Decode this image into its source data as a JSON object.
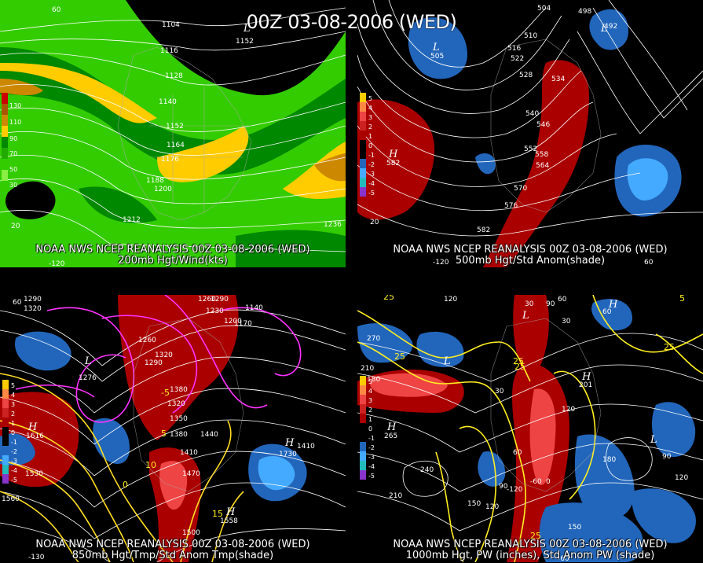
{
  "title": "00Z 03-08-2006 (WED)",
  "panels": [
    {
      "id": "p1",
      "caption_line1": "NOAA NWS NCEP REANALYSIS 00Z 03-08-2006 (WED)",
      "caption_line2": "200mb Hgt/Wind(kts)",
      "colorbar": [
        "130",
        "110",
        "90",
        "70",
        "50",
        "30"
      ],
      "colors": {
        "fill_low": "#33cc00",
        "fill_mid": "#008800",
        "fill_jet": "#ffcc00",
        "fill_core": "#cc8800",
        "fill_dark": "#000000"
      },
      "contour_labels": [
        "1104",
        "1116",
        "1128",
        "1140",
        "1152",
        "1164",
        "1176",
        "1188",
        "1200",
        "1212",
        "1236"
      ],
      "edge_labels": [
        "60",
        "-120",
        "20"
      ],
      "marks": [
        "L",
        "1152"
      ]
    },
    {
      "id": "p2",
      "caption_line1": "NOAA NWS NCEP REANALYSIS 00Z 03-08-2006 (WED)",
      "caption_line2": "500mb Hgt/Std Anom(shade)",
      "colorbar": [
        "5",
        "4",
        "3",
        "2",
        "1",
        "0",
        "-1",
        "-2",
        "-3",
        "-4",
        "-5"
      ],
      "colors": {
        "pos_anom": "#aa0000",
        "neg_anom": "#2266bb",
        "neg_strong": "#44aaff"
      },
      "contour_labels": [
        "504",
        "498",
        "510",
        "516",
        "522",
        "528",
        "534",
        "540",
        "546",
        "552",
        "558",
        "564",
        "570",
        "576",
        "582"
      ],
      "edge_labels": [
        "20",
        "-120",
        "60"
      ],
      "marks": [
        "L",
        "505",
        "L",
        "492",
        "H",
        "582"
      ]
    },
    {
      "id": "p3",
      "caption_line1": "NOAA NWS NCEP REANALYSIS 00Z 03-08-2006 (WED)",
      "caption_line2": "850mb Hgt/Tmp/Std Anom Tmp(shade)",
      "colorbar": [
        "5",
        "4",
        "3",
        "2",
        "1",
        "0",
        "-1",
        "-2",
        "-3",
        "-4",
        "-5"
      ],
      "colors": {
        "temp_cold": "#ff33ff",
        "temp_warm": "#ffdd22"
      },
      "contour_labels": [
        "1290",
        "1320",
        "1260",
        "1290",
        "1230",
        "1200",
        "1170",
        "1140",
        "1260",
        "1290",
        "1320",
        "1320",
        "1350",
        "1380",
        "1410",
        "1440",
        "1470",
        "1500",
        "1530",
        "1560",
        "1410",
        "1380"
      ],
      "temp_labels": [
        "10",
        "15",
        "-5",
        "0",
        "5"
      ],
      "edge_labels": [
        "60",
        "-130"
      ],
      "marks": [
        "H",
        "1616",
        "L",
        "1276",
        "H",
        "1558",
        "H",
        "1730"
      ]
    },
    {
      "id": "p4",
      "caption_line1": "NOAA NWS NCEP REANALYSIS 00Z 03-08-2006 (WED)",
      "caption_line2": "1000mb Hgt, PW (inches), Std Anom PW (shade)",
      "colorbar": [
        "5",
        "4",
        "3",
        "2",
        "1",
        "0",
        "-1",
        "-2",
        "-3",
        "-4",
        "-5"
      ],
      "colors": {
        "pw_line": "#ffee22"
      },
      "contour_labels": [
        "120",
        "60",
        "30",
        "90",
        "60",
        "30",
        "270",
        "210",
        "180",
        "240",
        "210",
        "150",
        "120",
        "90",
        "60",
        "30",
        "180",
        "90",
        "120",
        "150",
        "120",
        "-120",
        "-60",
        "0"
      ],
      "pw_labels": [
        "25",
        "25",
        "25",
        "25",
        "25",
        "25",
        "5"
      ],
      "edge_labels": [
        "-60"
      ],
      "marks": [
        "L",
        "H",
        "201",
        "H",
        "265",
        "L",
        "H",
        "L"
      ]
    }
  ]
}
